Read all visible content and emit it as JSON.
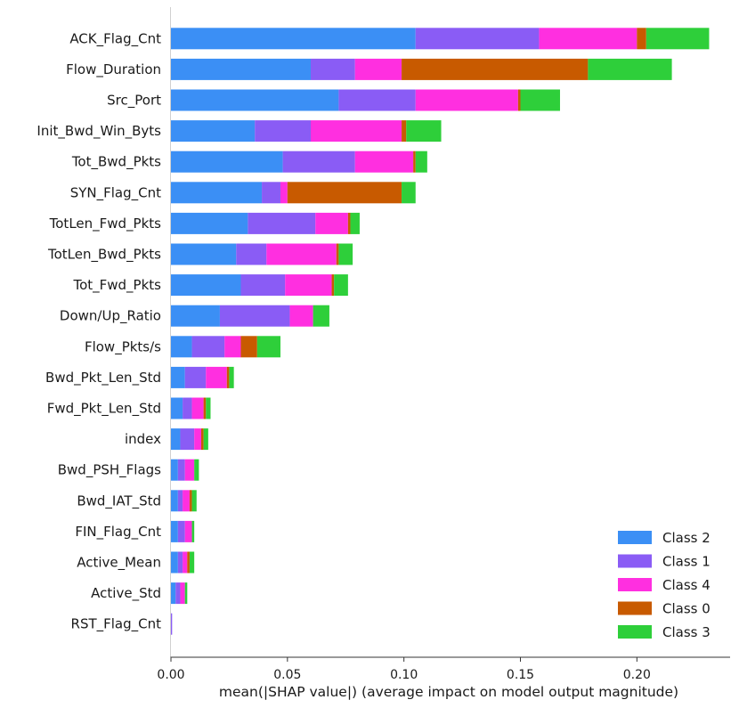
{
  "chart_data": {
    "type": "bar",
    "orientation": "horizontal",
    "stacked": true,
    "categories": [
      "ACK_Flag_Cnt",
      "Flow_Duration",
      "Src_Port",
      "Init_Bwd_Win_Byts",
      "Tot_Bwd_Pkts",
      "SYN_Flag_Cnt",
      "TotLen_Fwd_Pkts",
      "TotLen_Bwd_Pkts",
      "Tot_Fwd_Pkts",
      "Down/Up_Ratio",
      "Flow_Pkts/s",
      "Bwd_Pkt_Len_Std",
      "Fwd_Pkt_Len_Std",
      "index",
      "Bwd_PSH_Flags",
      "Bwd_IAT_Std",
      "FIN_Flag_Cnt",
      "Active_Mean",
      "Active_Std",
      "RST_Flag_Cnt"
    ],
    "series": [
      {
        "name": "Class 2",
        "color": "#3b8ff5",
        "values": [
          0.105,
          0.06,
          0.072,
          0.036,
          0.048,
          0.039,
          0.033,
          0.028,
          0.03,
          0.021,
          0.009,
          0.006,
          0.005,
          0.004,
          0.003,
          0.003,
          0.003,
          0.003,
          0.002,
          0.0
        ]
      },
      {
        "name": "Class 1",
        "color": "#8a5cf5",
        "values": [
          0.053,
          0.019,
          0.033,
          0.024,
          0.031,
          0.008,
          0.029,
          0.013,
          0.019,
          0.03,
          0.014,
          0.009,
          0.004,
          0.006,
          0.003,
          0.002,
          0.003,
          0.002,
          0.002,
          0.0005
        ]
      },
      {
        "name": "Class 4",
        "color": "#ff2fe0",
        "values": [
          0.042,
          0.02,
          0.044,
          0.039,
          0.025,
          0.003,
          0.014,
          0.03,
          0.02,
          0.01,
          0.007,
          0.009,
          0.005,
          0.003,
          0.004,
          0.003,
          0.003,
          0.002,
          0.002,
          0.0
        ]
      },
      {
        "name": "Class 0",
        "color": "#c85a00",
        "values": [
          0.004,
          0.08,
          0.001,
          0.002,
          0.001,
          0.049,
          0.001,
          0.001,
          0.001,
          0.0,
          0.007,
          0.001,
          0.001,
          0.001,
          0.0,
          0.001,
          0.0,
          0.001,
          0.0,
          0.0
        ]
      },
      {
        "name": "Class 3",
        "color": "#2ecf3a",
        "values": [
          0.027,
          0.036,
          0.017,
          0.015,
          0.005,
          0.006,
          0.004,
          0.006,
          0.006,
          0.007,
          0.01,
          0.002,
          0.002,
          0.002,
          0.002,
          0.002,
          0.001,
          0.002,
          0.001,
          0.0
        ]
      }
    ],
    "xlim": [
      0.0,
      0.24
    ],
    "xticks": [
      "0.00",
      "0.05",
      "0.10",
      "0.15",
      "0.20"
    ],
    "xtick_values": [
      0.0,
      0.05,
      0.1,
      0.15,
      0.2
    ],
    "xlabel": "mean(|SHAP value|) (average impact on model output magnitude)",
    "ylabel": "",
    "title": "",
    "grid": false,
    "legend_position": "bottom-right"
  }
}
